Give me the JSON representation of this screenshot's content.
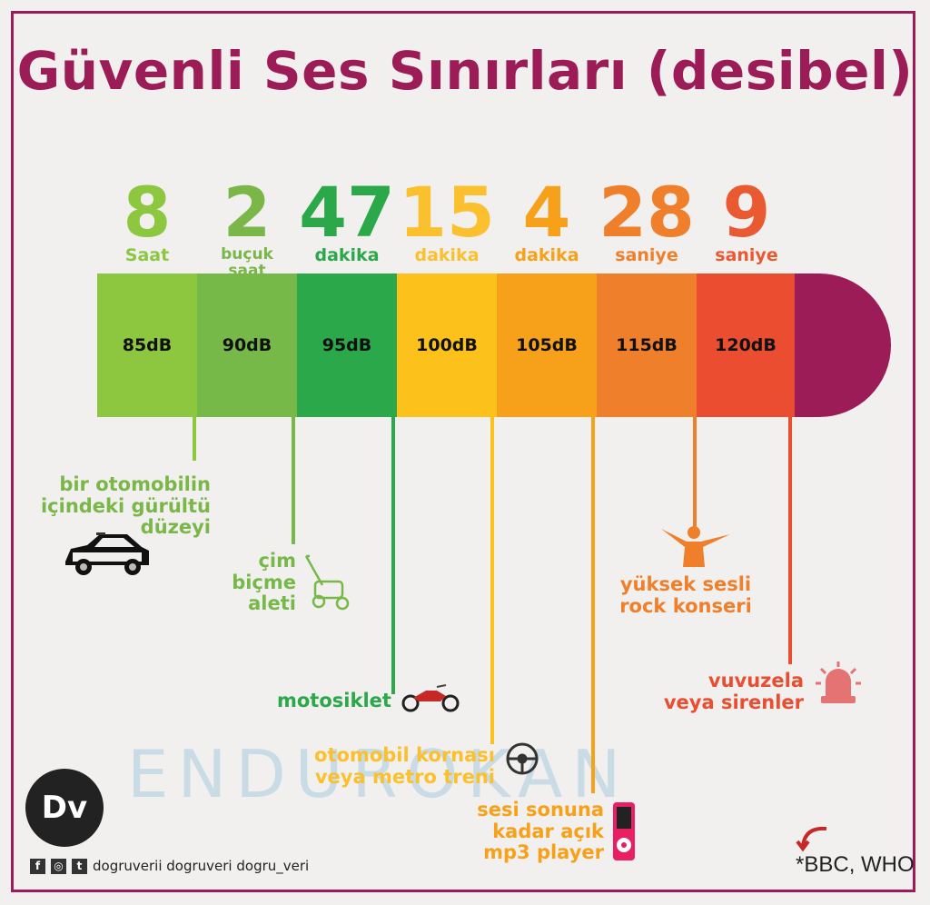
{
  "title": "Güvenli Ses Sınırları (desibel)",
  "durations": [
    {
      "num": "8",
      "unit": "Saat",
      "color": "#8dc63f"
    },
    {
      "num": "2",
      "unit": "buçuk saat",
      "color": "#7ab648"
    },
    {
      "num": "47",
      "unit": "dakika",
      "color": "#2aa84a"
    },
    {
      "num": "15",
      "unit": "dakika",
      "color": "#fbc02d"
    },
    {
      "num": "4",
      "unit": "dakika",
      "color": "#f7a11a"
    },
    {
      "num": "28",
      "unit": "saniye",
      "color": "#f07f2c"
    },
    {
      "num": "9",
      "unit": "saniye",
      "color": "#ea5a32"
    }
  ],
  "levels": [
    "85dB",
    "90dB",
    "95dB",
    "100dB",
    "105dB",
    "115dB",
    "120dB"
  ],
  "colors": {
    "seg": [
      "#8dc63f",
      "#76b948",
      "#2aa84a",
      "#fcc21b",
      "#f7a11a",
      "#f07f2c",
      "#ea4d30"
    ],
    "cap": "#9b1c56",
    "title": "#9b1c56"
  },
  "examples": [
    {
      "text": "bir otomobilin içindeki gürültü düzeyi",
      "icon": "car-icon"
    },
    {
      "text": "çim biçme aleti",
      "icon": "lawn-mower-icon"
    },
    {
      "text": "motosiklet",
      "icon": "motorcycle-icon"
    },
    {
      "text": "otomobil kornası veya metro treni",
      "icon": "steering-wheel-icon"
    },
    {
      "text": "sesi sonuna kadar açık mp3 player",
      "icon": "mp3-player-icon"
    },
    {
      "text": "yüksek sesli rock konseri",
      "icon": "concert-person-icon"
    },
    {
      "text": "vuvuzela veya sirenler",
      "icon": "siren-icon"
    }
  ],
  "watermark": "ENDUROKAN",
  "logo": "Dv",
  "social": "dogruverii  dogruveri  dogru_veri",
  "source": "*BBC, WHO"
}
